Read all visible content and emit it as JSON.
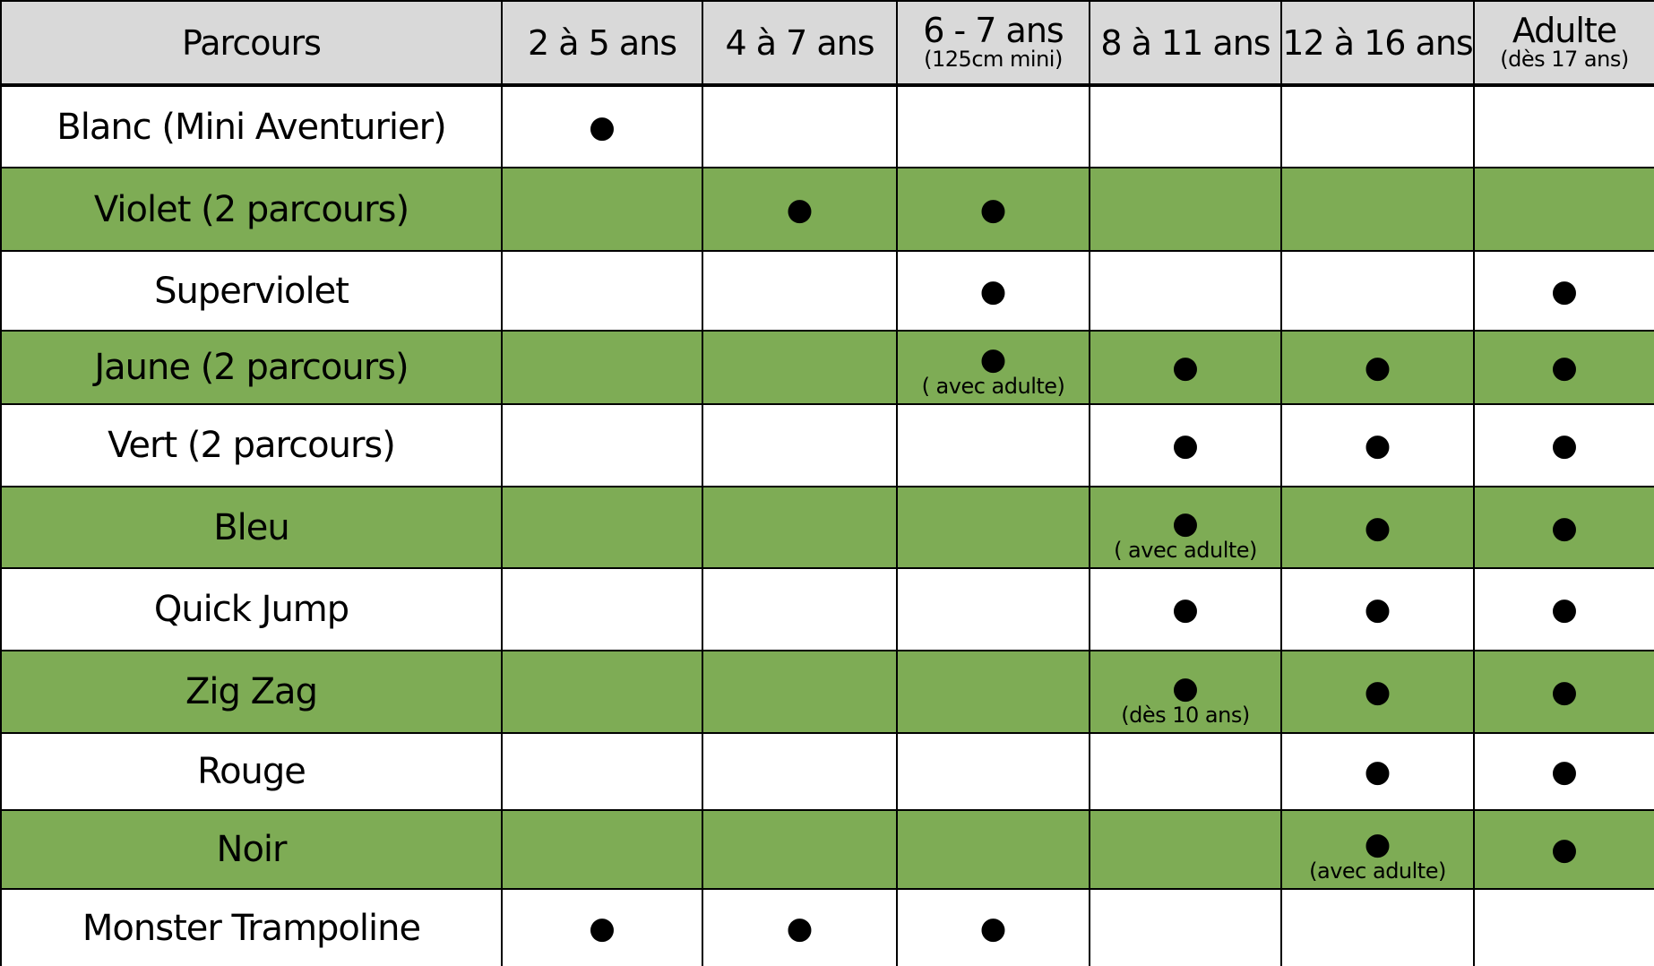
{
  "table": {
    "columns": [
      {
        "label": "Parcours"
      },
      {
        "label": "2 à 5 ans"
      },
      {
        "label": "4 à 7 ans"
      },
      {
        "label": "6 - 7 ans",
        "sublabel": "(125cm mini)"
      },
      {
        "label": "8 à 11 ans"
      },
      {
        "label": "12 à 16 ans"
      },
      {
        "label": "Adulte",
        "sublabel": "(dès 17 ans)"
      }
    ],
    "rows": [
      {
        "name": "Blanc (Mini Aventurier)",
        "cells": [
          {
            "mark": "●"
          },
          null,
          null,
          null,
          null,
          null
        ]
      },
      {
        "name": "Violet (2 parcours)",
        "cells": [
          null,
          {
            "mark": "●"
          },
          {
            "mark": "●"
          },
          null,
          null,
          null
        ]
      },
      {
        "name": "Superviolet",
        "cells": [
          null,
          null,
          {
            "mark": "●"
          },
          null,
          null,
          {
            "mark": "●"
          }
        ]
      },
      {
        "name": "Jaune (2 parcours)",
        "cells": [
          null,
          null,
          {
            "mark": "●",
            "note": "( avec adulte)"
          },
          {
            "mark": "●"
          },
          {
            "mark": "●"
          },
          {
            "mark": "●"
          }
        ]
      },
      {
        "name": "Vert (2 parcours)",
        "cells": [
          null,
          null,
          null,
          {
            "mark": "●"
          },
          {
            "mark": "●"
          },
          {
            "mark": "●"
          }
        ]
      },
      {
        "name": "Bleu",
        "cells": [
          null,
          null,
          null,
          {
            "mark": "●",
            "note": "( avec adulte)"
          },
          {
            "mark": "●"
          },
          {
            "mark": "●"
          }
        ]
      },
      {
        "name": "Quick Jump",
        "cells": [
          null,
          null,
          null,
          {
            "mark": "●"
          },
          {
            "mark": "●"
          },
          {
            "mark": "●"
          }
        ]
      },
      {
        "name": "Zig Zag",
        "cells": [
          null,
          null,
          null,
          {
            "mark": "●",
            "note": "(dès 10 ans)"
          },
          {
            "mark": "●"
          },
          {
            "mark": "●"
          }
        ]
      },
      {
        "name": "Rouge",
        "cells": [
          null,
          null,
          null,
          null,
          {
            "mark": "●"
          },
          {
            "mark": "●"
          }
        ]
      },
      {
        "name": "Noir",
        "cells": [
          null,
          null,
          null,
          null,
          {
            "mark": "●",
            "note": "(avec adulte)"
          },
          {
            "mark": "●"
          }
        ]
      },
      {
        "name": "Monster Trampoline",
        "cells": [
          {
            "mark": "●"
          },
          {
            "mark": "●"
          },
          {
            "mark": "●"
          },
          null,
          null,
          null
        ]
      }
    ]
  }
}
